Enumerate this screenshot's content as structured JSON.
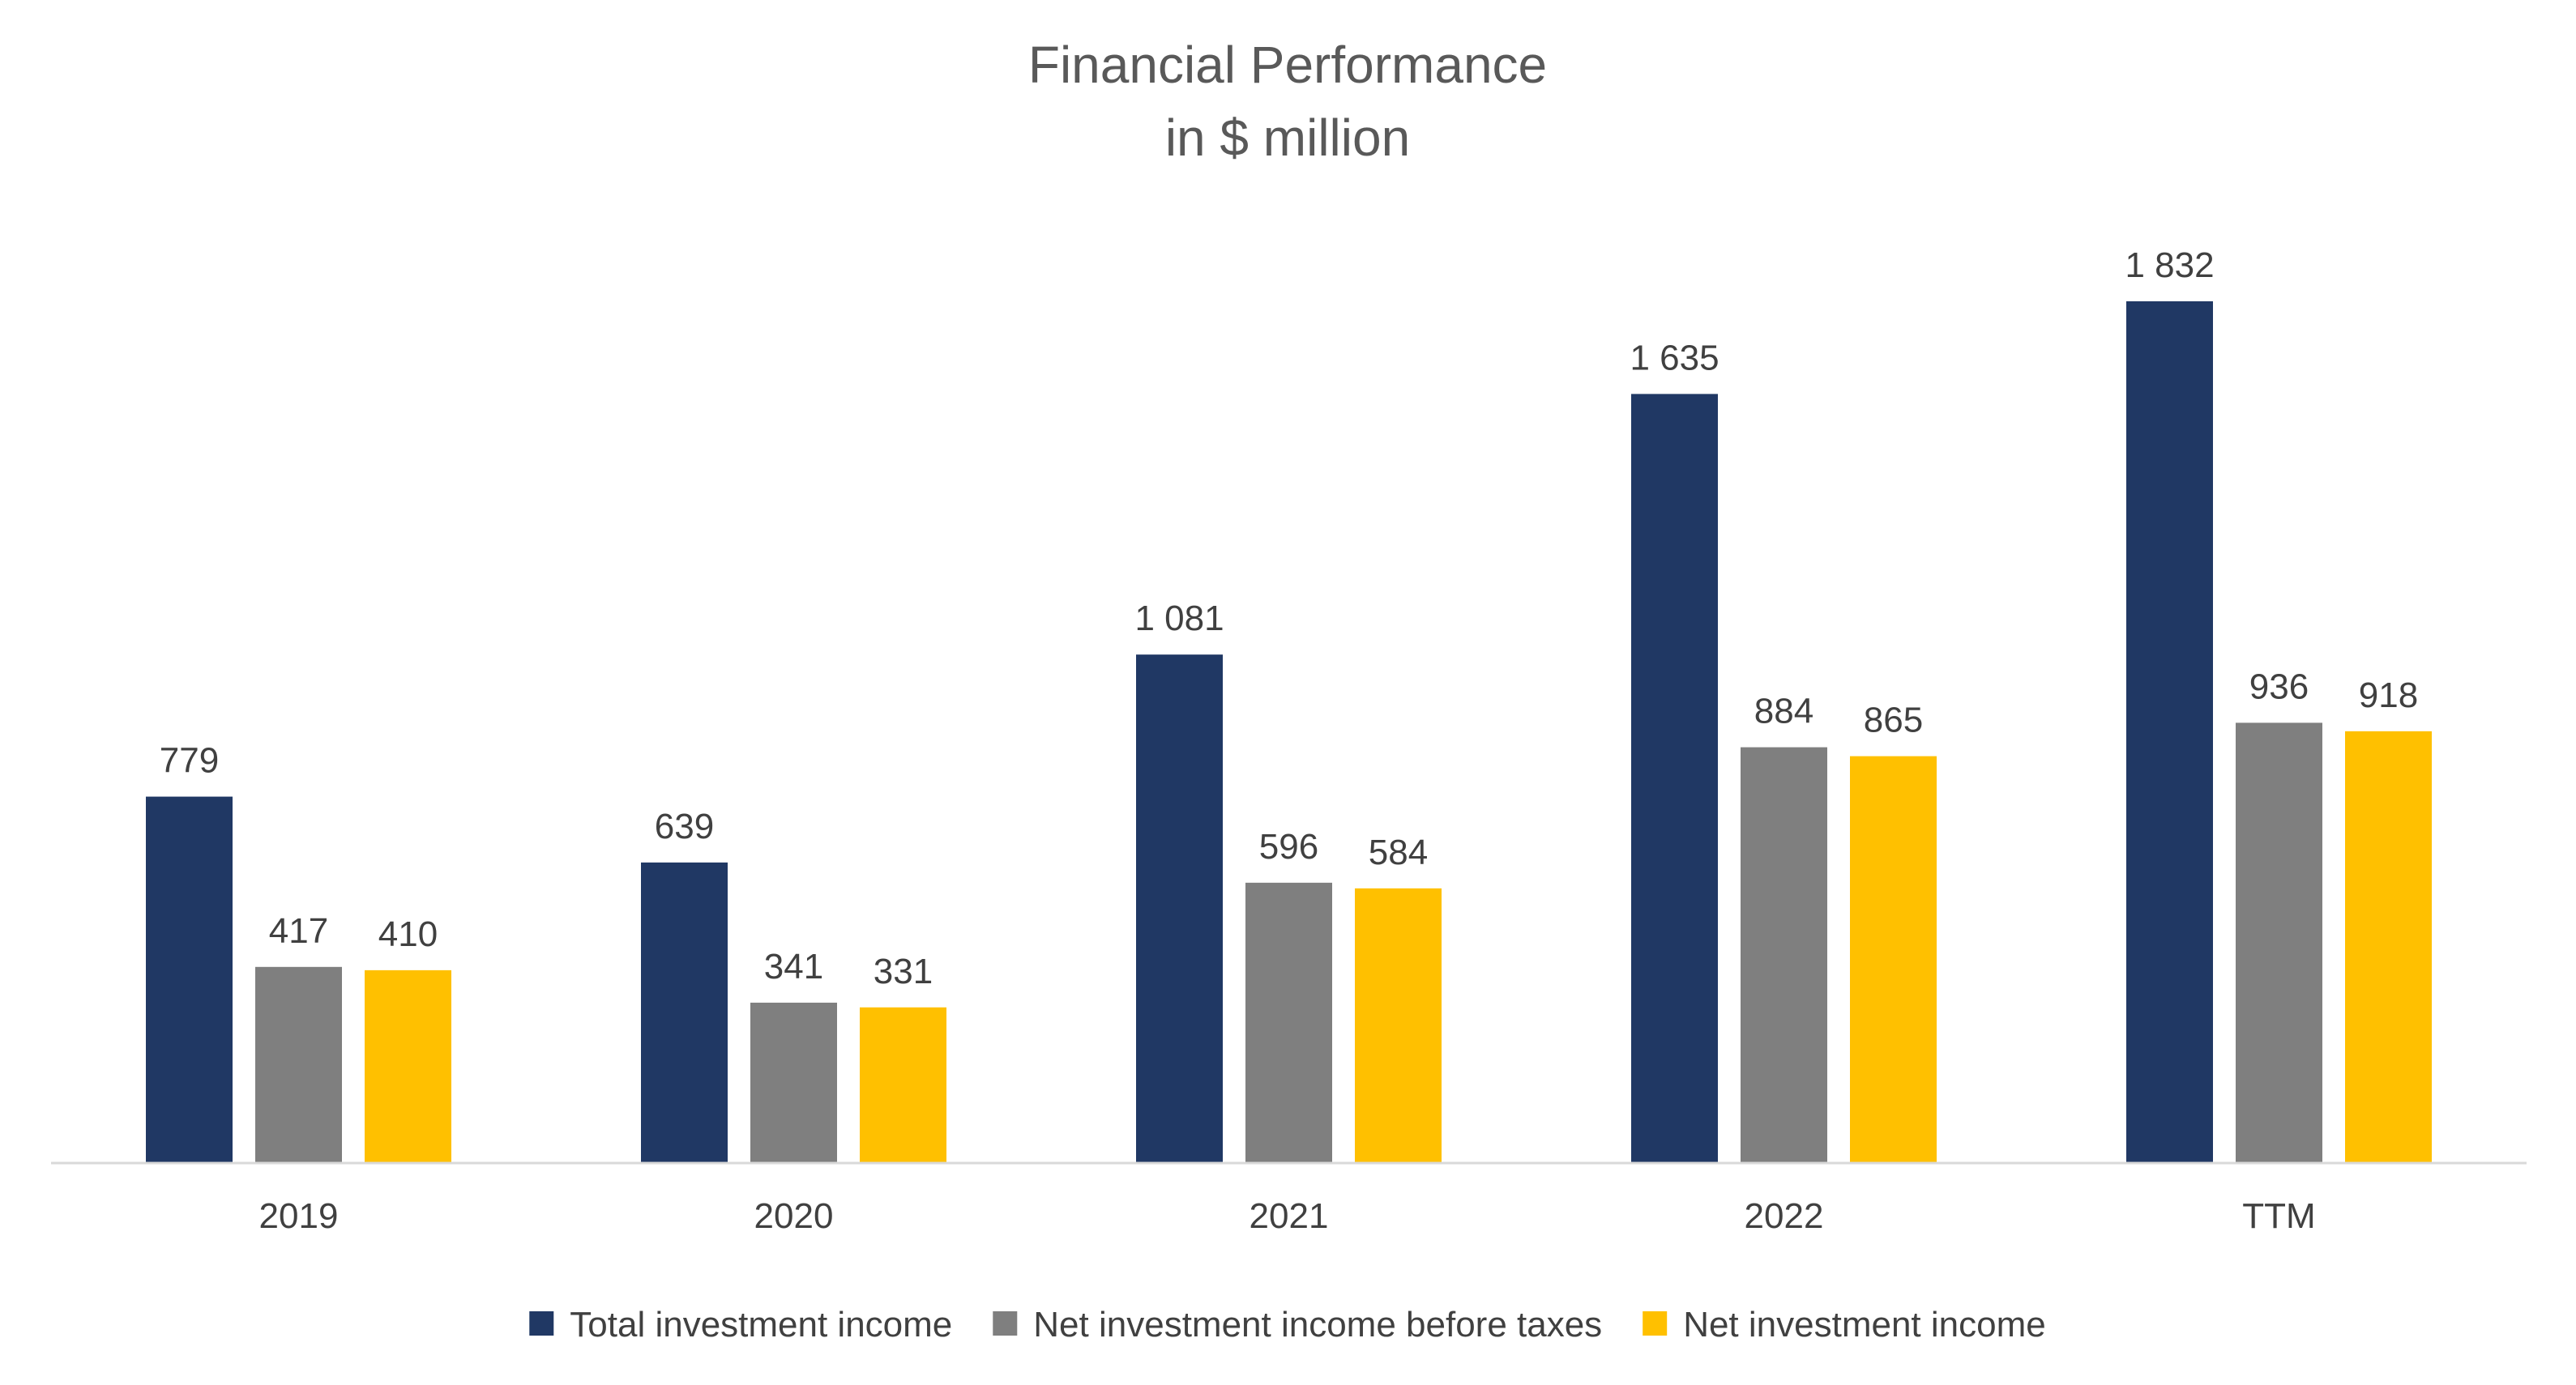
{
  "chart_data": {
    "type": "bar",
    "title": "Financial Performance",
    "subtitle": "in $ million",
    "categories": [
      "2019",
      "2020",
      "2021",
      "2022",
      "TTM"
    ],
    "series": [
      {
        "name": "Total investment income",
        "color": "#203864",
        "values": [
          779,
          639,
          1081,
          1635,
          1832
        ],
        "labels": [
          "779",
          "639",
          "1 081",
          "1 635",
          "1 832"
        ]
      },
      {
        "name": "Net investment income before taxes",
        "color": "#7F7F7F",
        "values": [
          417,
          341,
          596,
          884,
          936
        ],
        "labels": [
          "417",
          "341",
          "596",
          "884",
          "936"
        ]
      },
      {
        "name": "Net investment income",
        "color": "#FFC000",
        "values": [
          410,
          331,
          584,
          865,
          918
        ],
        "labels": [
          "410",
          "331",
          "584",
          "865",
          "918"
        ]
      }
    ],
    "ylim": [
      0,
      2000
    ],
    "grid": false,
    "legend": "bottom",
    "axis_color": "#D9D9D9"
  }
}
